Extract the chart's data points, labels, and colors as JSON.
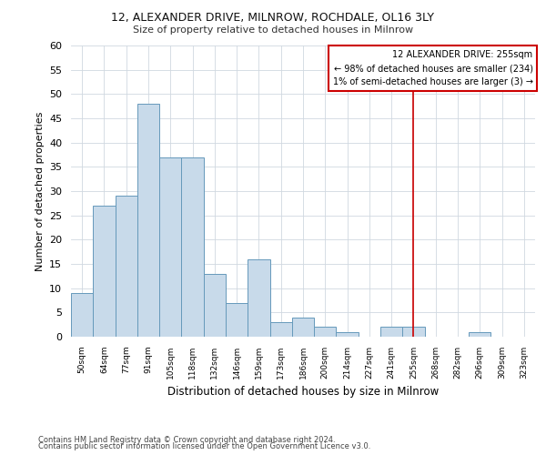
{
  "title1": "12, ALEXANDER DRIVE, MILNROW, ROCHDALE, OL16 3LY",
  "title2": "Size of property relative to detached houses in Milnrow",
  "xlabel": "Distribution of detached houses by size in Milnrow",
  "ylabel": "Number of detached properties",
  "footer1": "Contains HM Land Registry data © Crown copyright and database right 2024.",
  "footer2": "Contains public sector information licensed under the Open Government Licence v3.0.",
  "bin_labels": [
    "50sqm",
    "64sqm",
    "77sqm",
    "91sqm",
    "105sqm",
    "118sqm",
    "132sqm",
    "146sqm",
    "159sqm",
    "173sqm",
    "186sqm",
    "200sqm",
    "214sqm",
    "227sqm",
    "241sqm",
    "255sqm",
    "268sqm",
    "282sqm",
    "296sqm",
    "309sqm",
    "323sqm"
  ],
  "bar_values": [
    9,
    27,
    29,
    48,
    37,
    37,
    13,
    7,
    16,
    3,
    4,
    2,
    1,
    0,
    2,
    2,
    0,
    0,
    1,
    0,
    0
  ],
  "bar_color": "#c8daea",
  "bar_edge_color": "#6699bb",
  "property_line_index": 15,
  "annotation_text": "12 ALEXANDER DRIVE: 255sqm\n← 98% of detached houses are smaller (234)\n1% of semi-detached houses are larger (3) →",
  "annotation_box_color": "#cc0000",
  "vline_color": "#cc0000",
  "ylim": [
    0,
    60
  ],
  "yticks": [
    0,
    5,
    10,
    15,
    20,
    25,
    30,
    35,
    40,
    45,
    50,
    55,
    60
  ],
  "background_color": "#ffffff",
  "grid_color": "#d0d8e0"
}
